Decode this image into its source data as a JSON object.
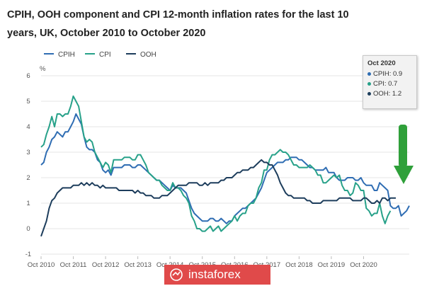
{
  "title": "CPIH, OOH component and CPI 12-month inflation rates for the last 10 years, UK, October 2010 to October 2020",
  "chart_data": {
    "type": "line",
    "ylabel": "%",
    "ylim": [
      -1,
      6
    ],
    "yticks": [
      "-1",
      "0",
      "1",
      "2",
      "3",
      "4",
      "5",
      "6"
    ],
    "xtick_labels": [
      "Oct 2010",
      "Oct 2011",
      "Oct 2012",
      "Oct 2013",
      "Oct 2014",
      "Oct 2015",
      "Oct 2016",
      "Oct 2017",
      "Oct 2018",
      "Oct 2019",
      "Oct 2020"
    ],
    "series": [
      {
        "name": "CPIH",
        "color": "#2f6db3",
        "values": [
          2.5,
          2.6,
          3.0,
          3.2,
          3.5,
          3.6,
          3.8,
          3.7,
          3.6,
          3.8,
          3.8,
          4.0,
          4.2,
          4.5,
          4.3,
          4.1,
          3.6,
          3.2,
          3.1,
          3.1,
          3.0,
          2.7,
          2.6,
          2.3,
          2.2,
          2.3,
          2.1,
          2.4,
          2.4,
          2.4,
          2.4,
          2.5,
          2.5,
          2.5,
          2.4,
          2.4,
          2.5,
          2.5,
          2.4,
          2.3,
          2.2,
          2.1,
          2.0,
          1.9,
          1.9,
          1.8,
          1.7,
          1.6,
          1.5,
          1.7,
          1.6,
          1.6,
          1.6,
          1.5,
          1.4,
          1.1,
          0.8,
          0.6,
          0.5,
          0.4,
          0.3,
          0.3,
          0.3,
          0.4,
          0.4,
          0.3,
          0.3,
          0.4,
          0.3,
          0.2,
          0.3,
          0.3,
          0.5,
          0.6,
          0.7,
          0.8,
          0.8,
          0.9,
          1.0,
          1.1,
          1.2,
          1.4,
          1.6,
          1.9,
          2.2,
          2.3,
          2.4,
          2.5,
          2.6,
          2.6,
          2.6,
          2.7,
          2.7,
          2.8,
          2.8,
          2.8,
          2.7,
          2.7,
          2.6,
          2.5,
          2.4,
          2.4,
          2.3,
          2.3,
          2.3,
          2.3,
          2.4,
          2.2,
          2.2,
          2.2,
          2.0,
          1.9,
          1.9,
          1.9,
          2.0,
          2.0,
          2.0,
          1.9,
          1.9,
          2.0,
          1.8,
          1.7,
          1.7,
          1.7,
          1.5,
          1.5,
          1.8,
          1.7,
          1.6,
          1.5,
          0.9,
          0.8,
          0.8,
          0.9,
          0.5,
          0.6,
          0.7,
          0.9
        ]
      },
      {
        "name": "CPI",
        "color": "#27a189",
        "values": [
          3.2,
          3.3,
          3.7,
          4.0,
          4.4,
          4.0,
          4.5,
          4.5,
          4.4,
          4.5,
          4.5,
          4.8,
          5.2,
          5.0,
          4.8,
          4.2,
          3.6,
          3.4,
          3.5,
          3.4,
          3.0,
          2.8,
          2.6,
          2.4,
          2.6,
          2.5,
          2.2,
          2.7,
          2.7,
          2.7,
          2.7,
          2.8,
          2.8,
          2.8,
          2.7,
          2.7,
          2.9,
          2.9,
          2.7,
          2.5,
          2.2,
          2.1,
          2.0,
          1.9,
          1.9,
          1.7,
          1.6,
          1.5,
          1.5,
          1.8,
          1.6,
          1.6,
          1.5,
          1.3,
          1.2,
          1.0,
          0.5,
          0.3,
          0.0,
          0.0,
          -0.1,
          -0.1,
          0.0,
          0.1,
          -0.1,
          0.0,
          0.1,
          -0.1,
          0.0,
          0.1,
          0.2,
          0.3,
          0.5,
          0.3,
          0.5,
          0.6,
          0.6,
          0.9,
          1.0,
          1.0,
          1.2,
          1.6,
          1.8,
          2.3,
          2.3,
          2.7,
          2.9,
          2.9,
          3.0,
          3.1,
          3.0,
          3.0,
          2.9,
          2.7,
          2.5,
          2.5,
          2.4,
          2.4,
          2.4,
          2.4,
          2.5,
          2.4,
          2.3,
          2.1,
          2.1,
          1.8,
          1.8,
          1.9,
          2.0,
          2.1,
          2.0,
          2.1,
          1.7,
          1.5,
          1.5,
          1.3,
          1.4,
          1.8,
          1.7,
          1.5,
          1.5,
          0.8,
          0.7,
          0.5,
          0.6,
          0.6,
          1.0,
          0.5,
          0.2,
          0.5,
          0.7
        ]
      },
      {
        "name": "OOH",
        "color": "#1d3d5c",
        "values": [
          -0.3,
          0.0,
          0.3,
          0.8,
          1.1,
          1.2,
          1.4,
          1.5,
          1.6,
          1.6,
          1.6,
          1.6,
          1.7,
          1.7,
          1.7,
          1.8,
          1.7,
          1.8,
          1.7,
          1.8,
          1.7,
          1.7,
          1.6,
          1.7,
          1.6,
          1.6,
          1.6,
          1.6,
          1.6,
          1.5,
          1.5,
          1.5,
          1.5,
          1.5,
          1.5,
          1.4,
          1.5,
          1.4,
          1.4,
          1.3,
          1.3,
          1.3,
          1.2,
          1.2,
          1.2,
          1.3,
          1.3,
          1.3,
          1.4,
          1.5,
          1.6,
          1.7,
          1.7,
          1.7,
          1.7,
          1.8,
          1.8,
          1.8,
          1.8,
          1.7,
          1.7,
          1.8,
          1.7,
          1.8,
          1.8,
          1.8,
          1.8,
          1.9,
          1.9,
          2.0,
          2.0,
          2.0,
          2.1,
          2.2,
          2.2,
          2.3,
          2.3,
          2.3,
          2.4,
          2.4,
          2.5,
          2.6,
          2.7,
          2.6,
          2.6,
          2.5,
          2.5,
          2.3,
          2.1,
          1.8,
          1.6,
          1.4,
          1.3,
          1.3,
          1.2,
          1.2,
          1.2,
          1.2,
          1.2,
          1.1,
          1.1,
          1.0,
          1.0,
          1.0,
          1.0,
          1.1,
          1.1,
          1.1,
          1.1,
          1.1,
          1.1,
          1.2,
          1.2,
          1.2,
          1.2,
          1.2,
          1.1,
          1.1,
          1.1,
          1.1,
          1.2,
          1.2,
          1.1,
          1.0,
          1.0,
          1.1,
          1.0,
          1.2,
          1.2,
          1.1,
          1.2,
          1.2,
          1.2
        ]
      }
    ],
    "tooltip": {
      "header": "Oct 2020",
      "rows": [
        "CPIH: 0.9",
        "CPI: 0.7",
        "OOH: 1.2"
      ]
    }
  },
  "watermark": {
    "text": "instaforex"
  },
  "arrow_color": "#2fa03a"
}
